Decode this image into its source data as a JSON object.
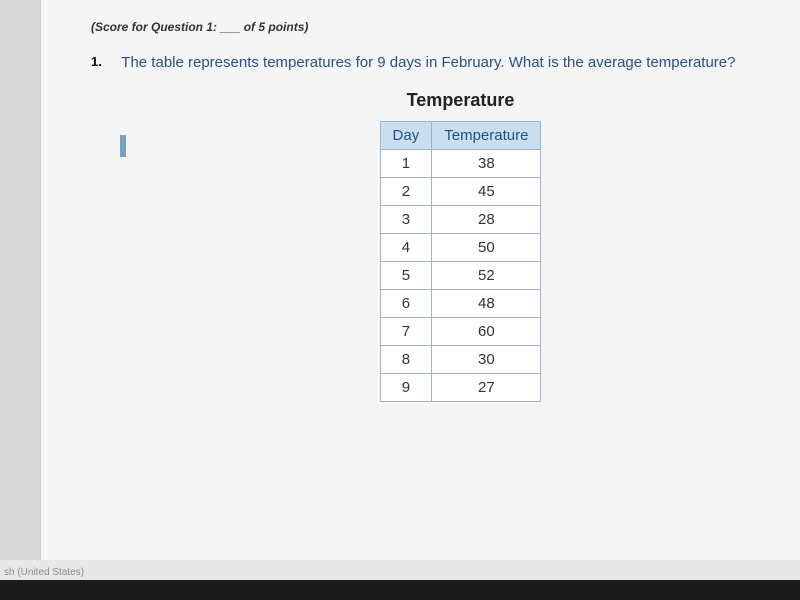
{
  "score_label": "(Score for Question 1: ___ of 5 points)",
  "question_number": "1.",
  "question_text": "The table represents temperatures for 9 days in February. What is the average temperature?",
  "table_title": "Temperature",
  "table": {
    "columns": [
      "Day",
      "Temperature"
    ],
    "rows": [
      [
        "1",
        "38"
      ],
      [
        "2",
        "45"
      ],
      [
        "3",
        "28"
      ],
      [
        "4",
        "50"
      ],
      [
        "5",
        "52"
      ],
      [
        "6",
        "48"
      ],
      [
        "7",
        "60"
      ],
      [
        "8",
        "30"
      ],
      [
        "9",
        "27"
      ]
    ],
    "header_bg": "#c9dff0",
    "border_color": "#9ab5cc",
    "header_text_color": "#2a5080"
  },
  "status_text": "sh (United States)",
  "colors": {
    "page_bg": "#f5f5f5",
    "body_bg": "#e8e8e8",
    "question_color": "#2a5080",
    "cursor_color": "#7a9fbf"
  }
}
